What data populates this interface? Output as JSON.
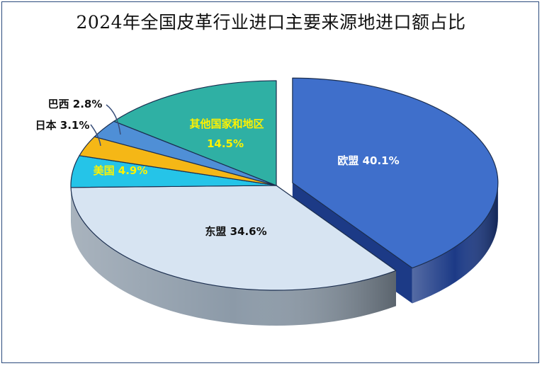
{
  "chart_data": {
    "type": "pie",
    "title": "2024年全国皮革行业进口主要来源地进口额占比",
    "slices": [
      {
        "label": "欧盟",
        "display": "欧盟 40.1%",
        "value": 40.1,
        "color": "#3f6fcb",
        "dark": "#1c3a86",
        "text_color": "#ffffff"
      },
      {
        "label": "东盟",
        "display": "东盟 34.6%",
        "value": 34.6,
        "color": "#d7e4f2",
        "dark": "#8c9aa8",
        "text_color": "#111111"
      },
      {
        "label": "美国",
        "display": "美国 4.9%",
        "value": 4.9,
        "color": "#25c4e8",
        "dark": "#127fa0",
        "text_color": "#fff200"
      },
      {
        "label": "日本",
        "display": "日本 3.1%",
        "value": 3.1,
        "color": "#f5b716",
        "dark": "#b57d07",
        "text_color": "#111111"
      },
      {
        "label": "巴西",
        "display": "巴西 2.8%",
        "value": 2.8,
        "color": "#4f8fd6",
        "dark": "#2a5a9c",
        "text_color": "#111111"
      },
      {
        "label": "其他国家和地区",
        "display_line1": "其他国家和地区",
        "display_line2": "14.5%",
        "value": 14.5,
        "color": "#2fb0a4",
        "dark": "#1a7a72",
        "text_color": "#fff200"
      }
    ]
  }
}
